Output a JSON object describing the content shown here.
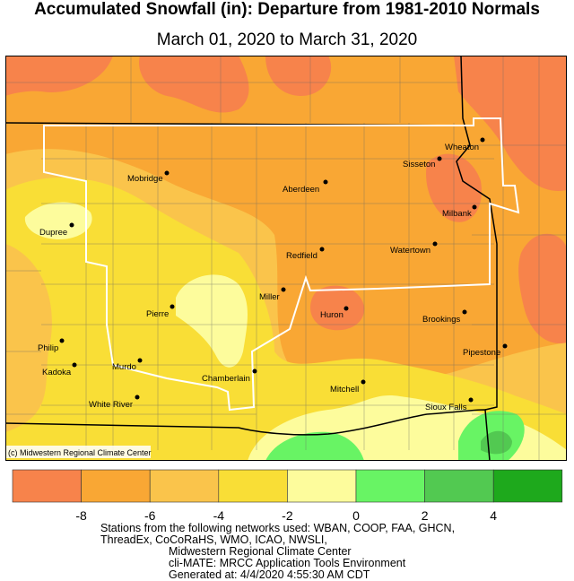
{
  "title": "Accumulated Snowfall (in): Departure from 1981-2010 Normals",
  "subtitle": "March 01, 2020 to March 31, 2020",
  "credit": "(c) Midwestern Regional Climate Center",
  "legend": {
    "colors": [
      "#f7834b",
      "#f9a734",
      "#fac44b",
      "#f9de36",
      "#fdfc9c",
      "#68f464",
      "#52c951",
      "#1ea91c"
    ],
    "ticks": [
      "-8",
      "-6",
      "-4",
      "-2",
      "0",
      "2",
      "4"
    ]
  },
  "cities": [
    {
      "name": "Wheaton"
    },
    {
      "name": "Sisseton"
    },
    {
      "name": "Mobridge"
    },
    {
      "name": "Aberdeen"
    },
    {
      "name": "Milbank"
    },
    {
      "name": "Dupree"
    },
    {
      "name": "Redfield"
    },
    {
      "name": "Watertown"
    },
    {
      "name": "Miller"
    },
    {
      "name": "Pierre"
    },
    {
      "name": "Huron"
    },
    {
      "name": "Brookings"
    },
    {
      "name": "Philip"
    },
    {
      "name": "Kadoka"
    },
    {
      "name": "Murdo"
    },
    {
      "name": "Pipestone"
    },
    {
      "name": "Chamberlain"
    },
    {
      "name": "Mitchell"
    },
    {
      "name": "White River"
    },
    {
      "name": "Sioux Falls"
    }
  ],
  "footer": {
    "line1": "Stations from the following networks used: WBAN, COOP, FAA, GHCN,",
    "line2": "ThreadEx, CoCoRaHS, WMO, ICAO, NWSLI,",
    "line3": "Midwestern Regional Climate Center",
    "line4": "cli-MATE: MRCC Application Tools Environment",
    "line5": "Generated at: 4/4/2020 4:55:30 AM CDT"
  }
}
